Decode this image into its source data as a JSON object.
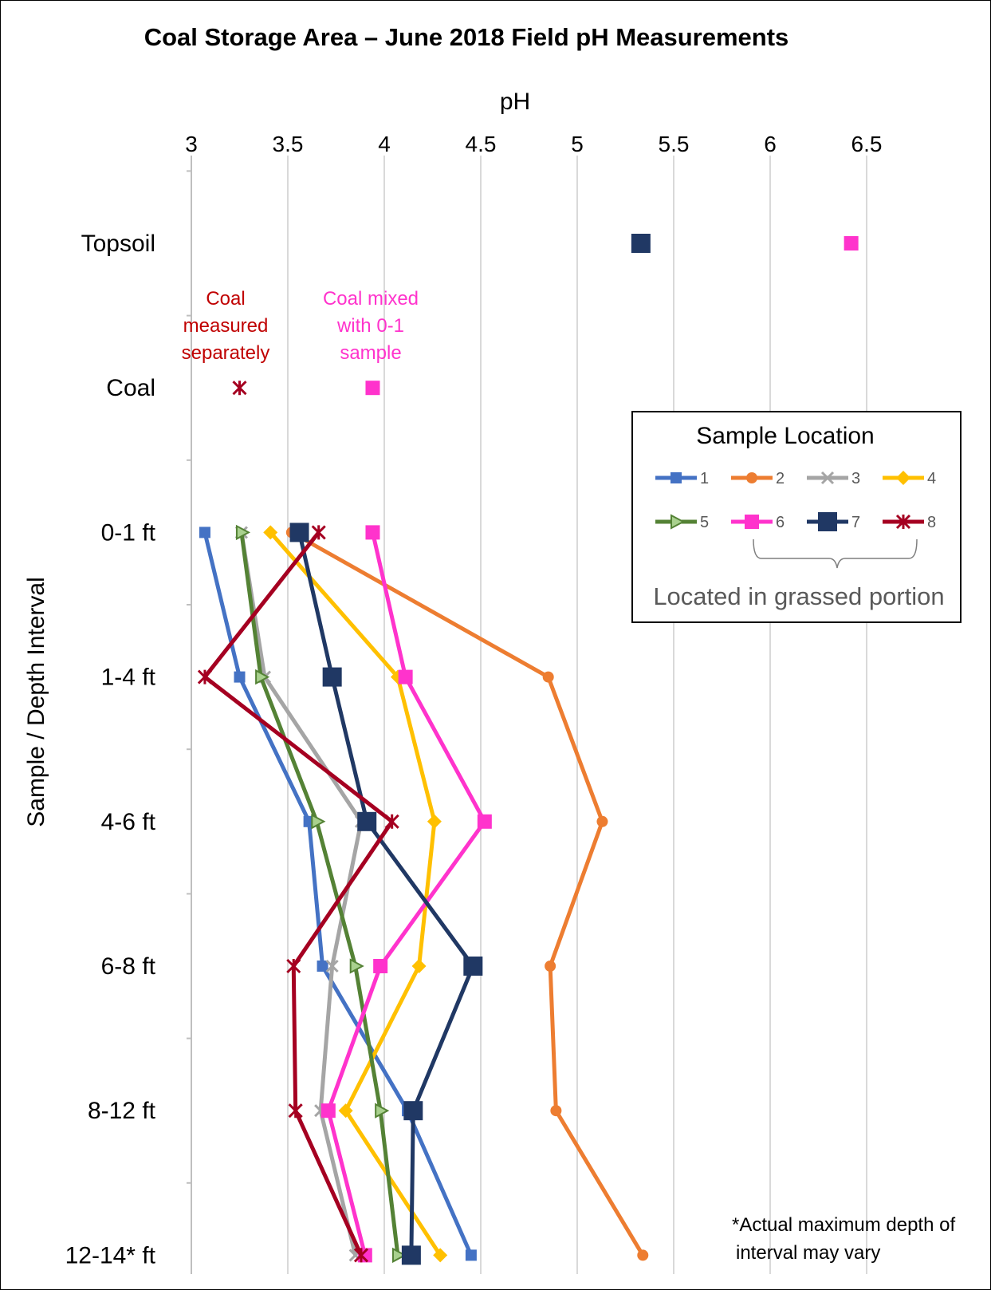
{
  "chart_data": {
    "type": "line",
    "title": "Coal Storage Area – June 2018 Field pH Measurements",
    "xlabel": "pH",
    "ylabel": "Sample / Depth Interval",
    "x_ticks": [
      "3",
      "3.5",
      "4",
      "4.5",
      "5",
      "5.5",
      "6",
      "6.5"
    ],
    "xlim": [
      3,
      6.5
    ],
    "x_axis_position": "top",
    "categories": [
      "Topsoil",
      "Coal",
      "0-1 ft",
      "1-4 ft",
      "4-6 ft",
      "6-8 ft",
      "8-12 ft",
      "12-14* ft"
    ],
    "grid": "vertical",
    "legend": {
      "title": "Sample Location",
      "placement": "right",
      "note": "Located in grassed portion"
    },
    "series": [
      {
        "name": "1",
        "color": "#4472C4",
        "marker": "square-small",
        "values": [
          null,
          null,
          3.07,
          3.25,
          3.61,
          3.68,
          4.12,
          4.45
        ]
      },
      {
        "name": "2",
        "color": "#ED7D31",
        "marker": "circle",
        "values": [
          null,
          null,
          3.52,
          4.85,
          5.13,
          4.86,
          4.89,
          5.34
        ]
      },
      {
        "name": "3",
        "color": "#A5A5A5",
        "marker": "x",
        "values": [
          null,
          null,
          3.26,
          3.38,
          3.88,
          3.73,
          3.67,
          3.85
        ]
      },
      {
        "name": "4",
        "color": "#FFC000",
        "marker": "diamond",
        "values": [
          null,
          null,
          3.41,
          4.07,
          4.26,
          4.18,
          3.8,
          4.29
        ]
      },
      {
        "name": "5",
        "color": "#548235",
        "marker": "triangle",
        "values": [
          null,
          null,
          3.26,
          3.36,
          3.65,
          3.85,
          3.98,
          4.07
        ]
      },
      {
        "name": "6",
        "color": "#FF33CC",
        "marker": "square",
        "values": [
          6.42,
          3.94,
          3.94,
          4.11,
          4.52,
          3.98,
          3.71,
          3.9
        ]
      },
      {
        "name": "7",
        "color": "#203864",
        "marker": "square-large",
        "values": [
          5.33,
          null,
          3.56,
          3.73,
          3.91,
          4.46,
          4.15,
          4.14
        ]
      },
      {
        "name": "8",
        "color": "#A50021",
        "marker": "star",
        "values": [
          null,
          3.25,
          3.66,
          3.07,
          4.04,
          3.53,
          3.54,
          3.88
        ]
      }
    ],
    "annotations": [
      {
        "text_lines": [
          "Coal",
          "measured",
          "separately"
        ],
        "color": "#C00000"
      },
      {
        "text_lines": [
          "Coal mixed",
          "with 0-1",
          "sample"
        ],
        "color": "#FF33CC"
      },
      {
        "text_lines": [
          "*Actual maximum depth of",
          "interval may vary"
        ],
        "color": "#000000"
      }
    ]
  }
}
